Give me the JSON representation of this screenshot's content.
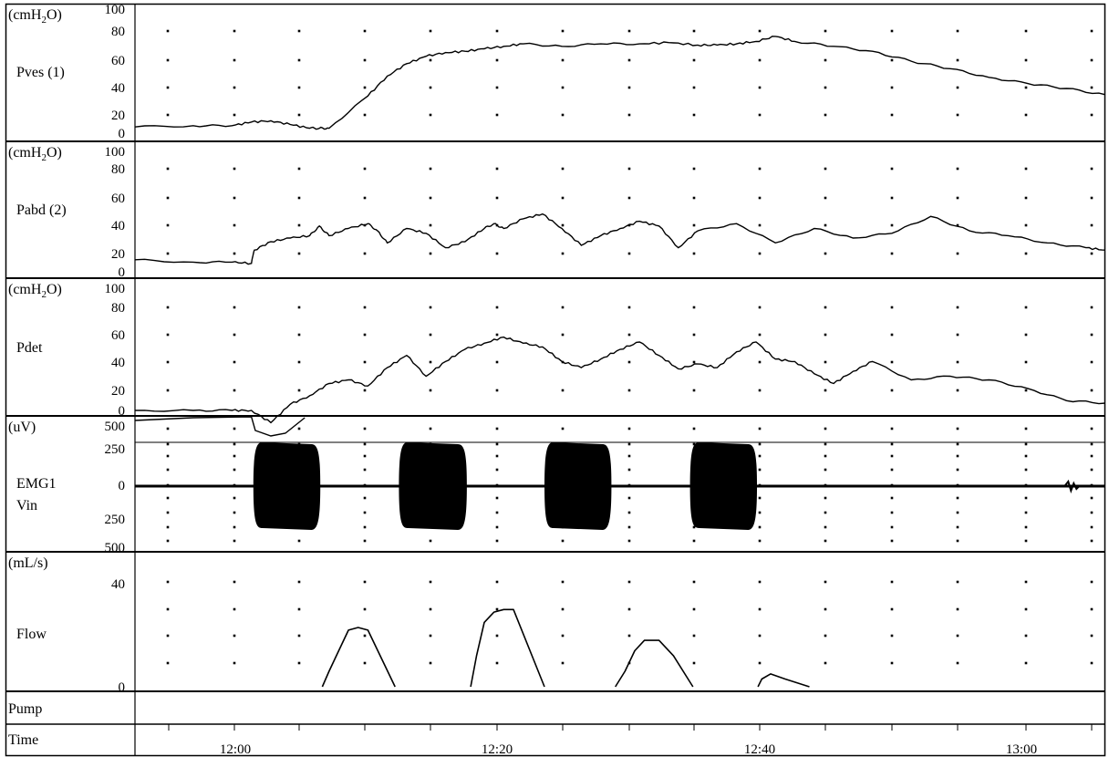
{
  "chart_data": {
    "type": "line",
    "time_axis": {
      "label": "Time",
      "ticks": [
        "12:00",
        "12:20",
        "12:40",
        "13:00"
      ]
    },
    "channels": [
      {
        "unit": "(cmH",
        "unit_sub": "2",
        "unit_tail": "O)",
        "name": "Pves (1)",
        "yticks": [
          "100",
          "80",
          "60",
          "40",
          "20",
          "0"
        ],
        "ylim": [
          0,
          100
        ],
        "t": [
          0,
          6,
          10,
          12,
          14,
          16,
          18,
          19,
          20,
          24,
          26,
          28,
          30,
          32,
          34,
          36,
          38,
          40,
          44,
          48,
          52,
          55,
          58,
          60,
          62,
          64,
          66,
          68,
          72,
          76,
          80,
          84,
          88,
          92,
          96,
          100
        ],
        "values": [
          5,
          6,
          6,
          9,
          10,
          7,
          4,
          4,
          4,
          30,
          46,
          56,
          62,
          65,
          66,
          68,
          70,
          72,
          70,
          72,
          72,
          73,
          71,
          71,
          72,
          74,
          78,
          74,
          70,
          66,
          58,
          52,
          45,
          40,
          36,
          31
        ]
      },
      {
        "unit": "(cmH",
        "unit_sub": "2",
        "unit_tail": "O)",
        "name": "Pabd (2)",
        "yticks": [
          "100",
          "80",
          "60",
          "40",
          "20",
          "0"
        ],
        "ylim": [
          0,
          100
        ],
        "t": [
          0,
          6,
          10,
          12,
          12.3,
          14,
          16,
          18,
          19,
          20,
          22,
          24,
          25,
          26,
          28,
          30,
          32,
          34,
          36,
          37,
          38,
          40,
          42,
          44,
          46,
          48,
          50,
          52,
          54,
          56,
          58,
          62,
          66,
          70,
          74,
          78,
          82,
          86,
          90,
          94,
          98,
          100
        ],
        "values": [
          10,
          8,
          8,
          7,
          18,
          25,
          28,
          30,
          38,
          30,
          36,
          40,
          34,
          24,
          36,
          32,
          20,
          25,
          36,
          40,
          36,
          44,
          48,
          36,
          22,
          30,
          36,
          42,
          38,
          20,
          34,
          40,
          24,
          36,
          28,
          32,
          46,
          34,
          30,
          24,
          20,
          18
        ]
      },
      {
        "unit": "(cmH",
        "unit_sub": "2",
        "unit_tail": "O)",
        "name": "Pdet",
        "yticks": [
          "100",
          "80",
          "60",
          "40",
          "20",
          "0"
        ],
        "ylim": [
          0,
          100
        ],
        "t": [
          0,
          6,
          10,
          12,
          14,
          16,
          18,
          20,
          22,
          24,
          26,
          28,
          30,
          32,
          34,
          36,
          38,
          40,
          42,
          44,
          46,
          48,
          50,
          52,
          54,
          56,
          58,
          60,
          62,
          64,
          66,
          68,
          70,
          72,
          74,
          76,
          80,
          84,
          88,
          92,
          96,
          100
        ],
        "values": [
          0,
          0,
          0,
          0,
          -10,
          5,
          12,
          22,
          25,
          20,
          35,
          45,
          28,
          40,
          50,
          55,
          60,
          55,
          52,
          40,
          35,
          42,
          50,
          56,
          45,
          34,
          38,
          35,
          48,
          56,
          42,
          40,
          30,
          22,
          32,
          40,
          25,
          28,
          25,
          18,
          8,
          6
        ]
      },
      {
        "unit": "(uV)",
        "name": "EMG1",
        "name2": "Vin",
        "yticks": [
          "500",
          "250",
          "0",
          "250",
          "500"
        ],
        "ylim": [
          -500,
          500
        ],
        "bursts": [
          {
            "from": 12.2,
            "to": 19.1
          },
          {
            "from": 27.2,
            "to": 34.2
          },
          {
            "from": 42.2,
            "to": 49.1
          },
          {
            "from": 57.2,
            "to": 64.1
          }
        ],
        "burst_amplitude": 130
      },
      {
        "unit": "(mL/s)",
        "name": "Flow",
        "yticks": [
          "40",
          "0"
        ],
        "ylim": [
          0,
          50
        ],
        "segments": [
          {
            "t": [
              19.3,
              20,
              21,
              22,
              23,
              24,
              26.8
            ],
            "values": [
              0,
              6,
              14,
              22,
              23,
              22,
              0
            ]
          },
          {
            "t": [
              34.6,
              35.2,
              36,
              37,
              38,
              39,
              42.2
            ],
            "values": [
              0,
              12,
              25,
              29,
              30,
              30,
              0
            ]
          },
          {
            "t": [
              49.5,
              50.5,
              51.5,
              52.5,
              54,
              55.5,
              57.5
            ],
            "values": [
              0,
              6,
              14,
              18,
              18,
              12,
              0
            ]
          },
          {
            "t": [
              64.2,
              64.6,
              65.5,
              67,
              69.5
            ],
            "values": [
              0,
              3,
              5,
              3,
              0
            ]
          }
        ]
      },
      {
        "name": "Pump"
      }
    ],
    "grid": "dotted"
  }
}
